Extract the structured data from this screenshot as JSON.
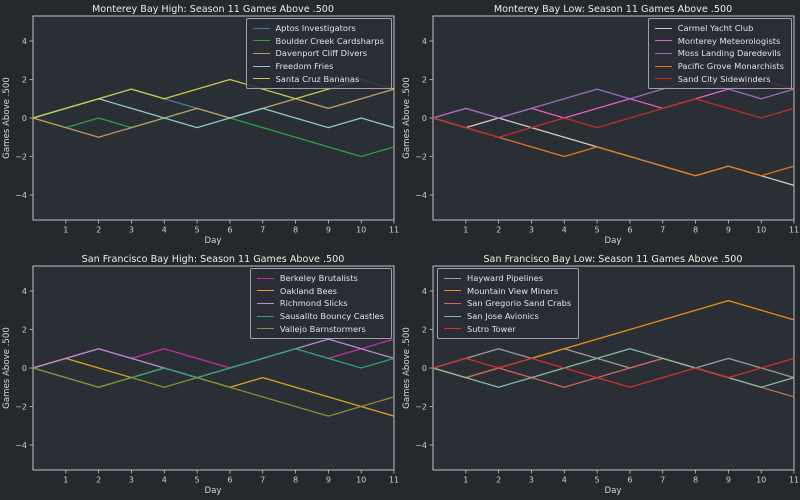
{
  "figure": {
    "background": "#25292e",
    "axes_background": "#2a2e35",
    "spine_color": "#bfc3c7",
    "tick_color": "#bfc3c7",
    "text_color": "#d6d4cf",
    "title_color": "#eceae6",
    "legend_border_color": "#9ba1a6"
  },
  "chart_data": [
    {
      "type": "line",
      "title": "Monterey Bay High: Season 11 Games Above .500",
      "xlabel": "Day",
      "ylabel": "Games Above .500",
      "xlim": [
        0,
        11
      ],
      "ylim": [
        -5.3,
        5.3
      ],
      "xticks": [
        1,
        2,
        3,
        4,
        5,
        6,
        7,
        8,
        9,
        10,
        11
      ],
      "yticks": [
        {
          "v": -4,
          "label": "−4"
        },
        {
          "v": -2,
          "label": "−2"
        },
        {
          "v": 0,
          "label": "0"
        },
        {
          "v": 2,
          "label": "2"
        },
        {
          "v": 4,
          "label": "4"
        }
      ],
      "grid": false,
      "legend_loc": "upper-right",
      "x": [
        0,
        1,
        2,
        3,
        4,
        5,
        6,
        7,
        8,
        9,
        10,
        11
      ],
      "series": [
        {
          "name": "Aptos Investigators",
          "color": "#4878a8",
          "values": [
            0,
            0.5,
            1,
            1.5,
            1,
            0.5,
            0,
            0.5,
            1,
            0.5,
            1,
            1.5
          ]
        },
        {
          "name": "Boulder Creek Cardsharps",
          "color": "#29a248",
          "values": [
            0,
            -0.5,
            0,
            -0.5,
            0,
            0.5,
            0,
            -0.5,
            -1,
            -1.5,
            -2,
            -1.5
          ]
        },
        {
          "name": "Davenport Cliff Divers",
          "color": "#bd9a62",
          "values": [
            0,
            -0.5,
            -1,
            -0.5,
            0,
            0.5,
            0,
            0.5,
            1,
            0.5,
            1,
            1.5
          ]
        },
        {
          "name": "Freedom Fries",
          "color": "#93cbc5",
          "values": [
            0,
            0.5,
            1,
            0.5,
            0,
            -0.5,
            0,
            0.5,
            0,
            -0.5,
            0,
            -0.5
          ]
        },
        {
          "name": "Santa Cruz Bananas",
          "color": "#cbc851",
          "values": [
            0,
            0.5,
            1,
            1.5,
            1,
            1.5,
            2,
            1.5,
            1,
            1.5,
            2,
            1.5
          ]
        }
      ]
    },
    {
      "type": "line",
      "title": "Monterey Bay Low: Season 11 Games Above .500",
      "xlabel": "Day",
      "ylabel": "Games Above .500",
      "xlim": [
        0,
        11
      ],
      "ylim": [
        -5.3,
        5.3
      ],
      "xticks": [
        1,
        2,
        3,
        4,
        5,
        6,
        7,
        8,
        9,
        10,
        11
      ],
      "yticks": [
        {
          "v": -4,
          "label": "−4"
        },
        {
          "v": -2,
          "label": "−2"
        },
        {
          "v": 0,
          "label": "0"
        },
        {
          "v": 2,
          "label": "2"
        },
        {
          "v": 4,
          "label": "4"
        }
      ],
      "grid": false,
      "legend_loc": "upper-right",
      "x": [
        0,
        1,
        2,
        3,
        4,
        5,
        6,
        7,
        8,
        9,
        10,
        11
      ],
      "series": [
        {
          "name": "Carmel Yacht Club",
          "color": "#d5cdc1",
          "values": [
            0,
            -0.5,
            0,
            -0.5,
            -1,
            -1.5,
            -2,
            -2.5,
            -3,
            -2.5,
            -3,
            -3.5
          ]
        },
        {
          "name": "Monterey Meteorologists",
          "color": "#e560c5",
          "values": [
            0,
            0.5,
            0,
            0.5,
            0,
            0.5,
            1,
            0.5,
            1,
            1.5,
            2,
            1.5
          ]
        },
        {
          "name": "Moss Landing Daredevils",
          "color": "#9c6cbd",
          "values": [
            0,
            0.5,
            0,
            0.5,
            1,
            1.5,
            1,
            1.5,
            2,
            1.5,
            1,
            1.5
          ]
        },
        {
          "name": "Pacific Grove Monarchists",
          "color": "#dd7a22",
          "values": [
            0,
            -0.5,
            -1,
            -1.5,
            -2,
            -1.5,
            -2,
            -2.5,
            -3,
            -2.5,
            -3,
            -2.5
          ]
        },
        {
          "name": "Sand City Sidewinders",
          "color": "#bf2f28",
          "values": [
            0,
            -0.5,
            -1,
            -0.5,
            0,
            -0.5,
            0,
            0.5,
            1,
            0.5,
            0,
            0.5
          ]
        }
      ]
    },
    {
      "type": "line",
      "title": "San Francisco Bay High: Season 11 Games Above .500",
      "xlabel": "Day",
      "ylabel": "Games Above .500",
      "xlim": [
        0,
        11
      ],
      "ylim": [
        -5.3,
        5.3
      ],
      "xticks": [
        1,
        2,
        3,
        4,
        5,
        6,
        7,
        8,
        9,
        10,
        11
      ],
      "yticks": [
        {
          "v": -4,
          "label": "−4"
        },
        {
          "v": -2,
          "label": "−2"
        },
        {
          "v": 0,
          "label": "0"
        },
        {
          "v": 2,
          "label": "2"
        },
        {
          "v": 4,
          "label": "4"
        }
      ],
      "grid": false,
      "legend_loc": "upper-right",
      "x": [
        0,
        1,
        2,
        3,
        4,
        5,
        6,
        7,
        8,
        9,
        10,
        11
      ],
      "series": [
        {
          "name": "Berkeley Brutalists",
          "color": "#c42f9d",
          "values": [
            0,
            0.5,
            1,
            0.5,
            1,
            0.5,
            0,
            0.5,
            1,
            0.5,
            1,
            1.5
          ]
        },
        {
          "name": "Oakland Bees",
          "color": "#dfa224",
          "values": [
            0,
            0.5,
            0,
            -0.5,
            0,
            -0.5,
            -1,
            -0.5,
            -1,
            -1.5,
            -2,
            -2.5
          ]
        },
        {
          "name": "Richmond Slicks",
          "color": "#b88ed0",
          "values": [
            0,
            0.5,
            1,
            0.5,
            0,
            -0.5,
            0,
            0.5,
            1,
            1.5,
            1,
            0.5
          ]
        },
        {
          "name": "Sausalito Bouncy Castles",
          "color": "#2ba37e",
          "values": [
            0,
            -0.5,
            -1,
            -0.5,
            0,
            -0.5,
            0,
            0.5,
            1,
            0.5,
            0,
            0.5
          ]
        },
        {
          "name": "Vallejo Barnstormers",
          "color": "#8a8e3d",
          "values": [
            0,
            -0.5,
            -1,
            -0.5,
            -1,
            -0.5,
            -1,
            -1.5,
            -2,
            -2.5,
            -2,
            -1.5
          ]
        }
      ]
    },
    {
      "type": "line",
      "title": "San Francisco Bay Low: Season 11 Games Above .500",
      "xlabel": "Day",
      "ylabel": "Games Above .500",
      "xlim": [
        0,
        11
      ],
      "ylim": [
        -5.3,
        5.3
      ],
      "xticks": [
        1,
        2,
        3,
        4,
        5,
        6,
        7,
        8,
        9,
        10,
        11
      ],
      "yticks": [
        {
          "v": -4,
          "label": "−4"
        },
        {
          "v": -2,
          "label": "−2"
        },
        {
          "v": 0,
          "label": "0"
        },
        {
          "v": 2,
          "label": "2"
        },
        {
          "v": 4,
          "label": "4"
        }
      ],
      "grid": false,
      "legend_loc": "upper-left",
      "x": [
        0,
        1,
        2,
        3,
        4,
        5,
        6,
        7,
        8,
        9,
        10,
        11
      ],
      "series": [
        {
          "name": "Hayward Pipelines",
          "color": "#9c9c9c",
          "values": [
            0,
            0.5,
            1,
            0.5,
            1,
            0.5,
            0,
            0.5,
            0,
            0.5,
            0,
            -0.5
          ]
        },
        {
          "name": "Mountain View Miners",
          "color": "#e69116",
          "values": [
            0,
            -0.5,
            0,
            0.5,
            1,
            1.5,
            2,
            2.5,
            3,
            3.5,
            3,
            2.5
          ]
        },
        {
          "name": "San Gregorio Sand Crabs",
          "color": "#cc685c",
          "values": [
            0,
            -0.5,
            0,
            -0.5,
            -1,
            -0.5,
            0,
            0.5,
            0,
            -0.5,
            -1,
            -1.5
          ]
        },
        {
          "name": "San Jose Avionics",
          "color": "#84bda5",
          "values": [
            0,
            -0.5,
            -1,
            -0.5,
            0,
            0.5,
            1,
            0.5,
            0,
            -0.5,
            -1,
            -0.5
          ]
        },
        {
          "name": "Sutro Tower",
          "color": "#d2332e",
          "values": [
            0,
            0.5,
            0,
            0.5,
            0,
            -0.5,
            -1,
            -0.5,
            0,
            -0.5,
            0,
            0.5
          ]
        }
      ]
    }
  ]
}
